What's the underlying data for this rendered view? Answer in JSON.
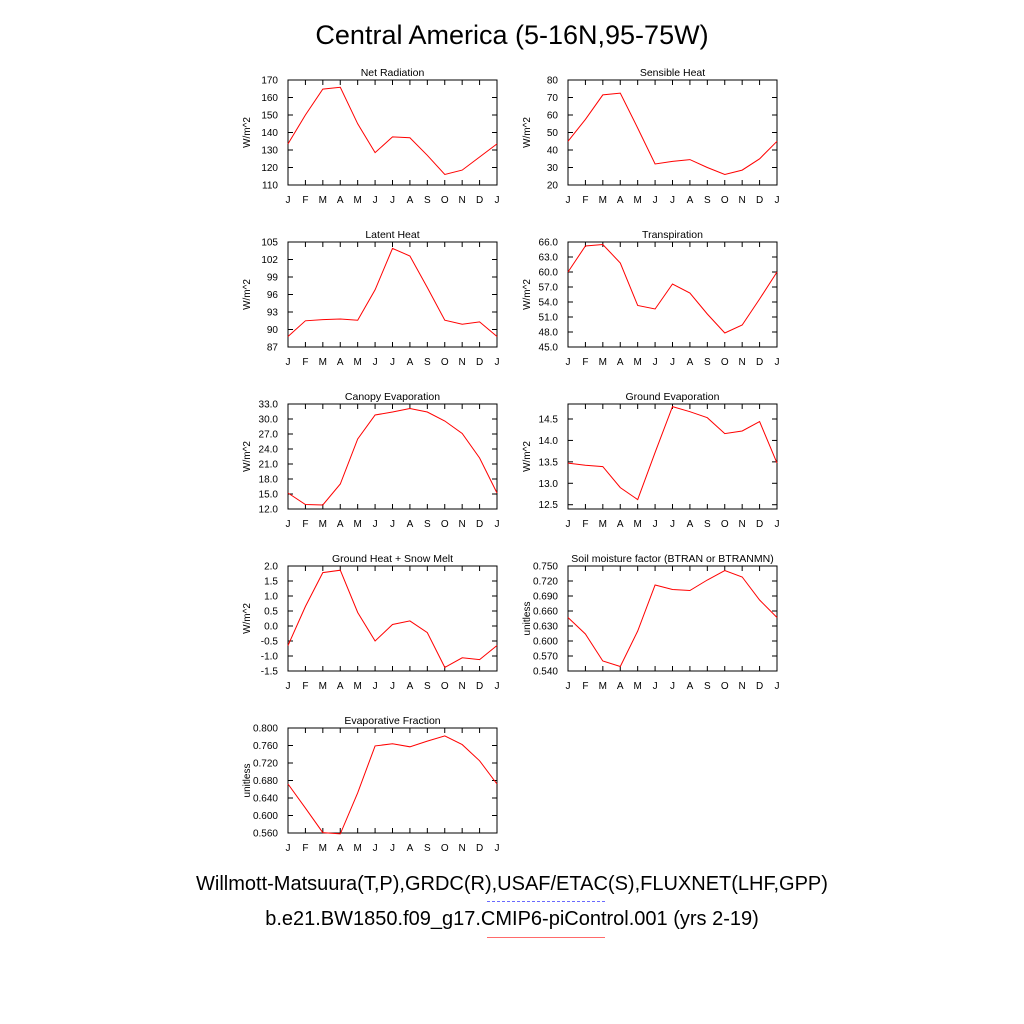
{
  "title": "Central America (5-16N,95-75W)",
  "legend": {
    "observations": "Willmott-Matsuura(T,P),GRDC(R),USAF/ETAC(S),FLUXNET(LHF,GPP)",
    "model": "b.e21.BW1850.f09_g17.CMIP6-piControl.001 (yrs 2-19)",
    "observations_color": "#4444ff",
    "model_color": "#ff0000"
  },
  "chart_data": [
    {
      "type": "line",
      "title": "Net Radiation",
      "xlabel": "",
      "ylabel": "W/m^2",
      "categories": [
        "J",
        "F",
        "M",
        "A",
        "M",
        "J",
        "J",
        "A",
        "S",
        "O",
        "N",
        "D",
        "J"
      ],
      "ylim": [
        110,
        170
      ],
      "yticks": [
        "110",
        "120",
        "130",
        "140",
        "150",
        "160",
        "170"
      ],
      "series": [
        {
          "name": "b.e21.BW1850.f09_g17.CMIP6-piControl.001 (yrs 2-19)",
          "color": "#ff0000",
          "values": [
            133.5,
            150,
            164.8,
            165.8,
            145,
            128.5,
            137.5,
            137,
            127,
            116,
            118.5,
            126,
            133.5
          ]
        }
      ]
    },
    {
      "type": "line",
      "title": "Sensible Heat",
      "xlabel": "",
      "ylabel": "W/m^2",
      "categories": [
        "J",
        "F",
        "M",
        "A",
        "M",
        "J",
        "J",
        "A",
        "S",
        "O",
        "N",
        "D",
        "J"
      ],
      "ylim": [
        20,
        80
      ],
      "yticks": [
        "20",
        "30",
        "40",
        "50",
        "60",
        "70",
        "80"
      ],
      "series": [
        {
          "name": "b.e21.BW1850.f09_g17.CMIP6-piControl.001 (yrs 2-19)",
          "color": "#ff0000",
          "values": [
            45,
            57.5,
            71.5,
            72.5,
            52.5,
            32,
            33.5,
            34.5,
            30,
            26,
            28.5,
            35,
            45
          ]
        }
      ]
    },
    {
      "type": "line",
      "title": "Latent Heat",
      "xlabel": "",
      "ylabel": "W/m^2",
      "categories": [
        "J",
        "F",
        "M",
        "A",
        "M",
        "J",
        "J",
        "A",
        "S",
        "O",
        "N",
        "D",
        "J"
      ],
      "ylim": [
        87,
        105
      ],
      "yticks": [
        "87",
        "90",
        "93",
        "96",
        "99",
        "102",
        "105"
      ],
      "series": [
        {
          "name": "b.e21.BW1850.f09_g17.CMIP6-piControl.001 (yrs 2-19)",
          "color": "#ff0000",
          "values": [
            88.8,
            91.5,
            91.7,
            91.8,
            91.6,
            96.8,
            103.9,
            102.6,
            97.2,
            91.6,
            90.9,
            91.3,
            88.8
          ]
        }
      ]
    },
    {
      "type": "line",
      "title": "Transpiration",
      "xlabel": "",
      "ylabel": "W/m^2",
      "categories": [
        "J",
        "F",
        "M",
        "A",
        "M",
        "J",
        "J",
        "A",
        "S",
        "O",
        "N",
        "D",
        "J"
      ],
      "ylim": [
        45,
        66
      ],
      "yticks": [
        "45.0",
        "48.0",
        "51.0",
        "54.0",
        "57.0",
        "60.0",
        "63.0",
        "66.0"
      ],
      "series": [
        {
          "name": "b.e21.BW1850.f09_g17.CMIP6-piControl.001 (yrs 2-19)",
          "color": "#ff0000",
          "values": [
            60,
            65.2,
            65.5,
            61.8,
            53.3,
            52.6,
            57.6,
            55.8,
            51.6,
            47.8,
            49.4,
            54.6,
            60
          ]
        }
      ]
    },
    {
      "type": "line",
      "title": "Canopy Evaporation",
      "xlabel": "",
      "ylabel": "W/m^2",
      "categories": [
        "J",
        "F",
        "M",
        "A",
        "M",
        "J",
        "J",
        "A",
        "S",
        "O",
        "N",
        "D",
        "J"
      ],
      "ylim": [
        12,
        33
      ],
      "yticks": [
        "12.0",
        "15.0",
        "18.0",
        "21.0",
        "24.0",
        "27.0",
        "30.0",
        "33.0"
      ],
      "series": [
        {
          "name": "b.e21.BW1850.f09_g17.CMIP6-piControl.001 (yrs 2-19)",
          "color": "#ff0000",
          "values": [
            15.2,
            12.9,
            12.8,
            17,
            26,
            30.8,
            31.4,
            32.1,
            31.4,
            29.6,
            27.1,
            22.2,
            15.2
          ]
        }
      ]
    },
    {
      "type": "line",
      "title": "Ground Evaporation",
      "xlabel": "",
      "ylabel": "W/m^2",
      "categories": [
        "J",
        "F",
        "M",
        "A",
        "M",
        "J",
        "J",
        "A",
        "S",
        "O",
        "N",
        "D",
        "J"
      ],
      "ylim": [
        12.4,
        14.85
      ],
      "yticks": [
        "12.5",
        "13.0",
        "13.5",
        "14.0",
        "14.5"
      ],
      "series": [
        {
          "name": "b.e21.BW1850.f09_g17.CMIP6-piControl.001 (yrs 2-19)",
          "color": "#ff0000",
          "values": [
            13.47,
            13.42,
            13.39,
            12.9,
            12.62,
            13.72,
            14.79,
            14.67,
            14.53,
            14.16,
            14.22,
            14.44,
            13.47
          ]
        }
      ]
    },
    {
      "type": "line",
      "title": "Ground Heat + Snow Melt",
      "xlabel": "",
      "ylabel": "W/m^2",
      "categories": [
        "J",
        "F",
        "M",
        "A",
        "M",
        "J",
        "J",
        "A",
        "S",
        "O",
        "N",
        "D",
        "J"
      ],
      "ylim": [
        -1.5,
        2.0
      ],
      "yticks": [
        "-1.5",
        "-1.0",
        "-0.5",
        "0.0",
        "0.5",
        "1.0",
        "1.5",
        "2.0"
      ],
      "series": [
        {
          "name": "b.e21.BW1850.f09_g17.CMIP6-piControl.001 (yrs 2-19)",
          "color": "#ff0000",
          "values": [
            -0.65,
            0.65,
            1.78,
            1.86,
            0.45,
            -0.5,
            0.05,
            0.17,
            -0.22,
            -1.38,
            -1.06,
            -1.12,
            -0.65
          ]
        }
      ]
    },
    {
      "type": "line",
      "title": "Soil moisture factor (BTRAN or BTRANMN)",
      "xlabel": "",
      "ylabel": "unitless",
      "categories": [
        "J",
        "F",
        "M",
        "A",
        "M",
        "J",
        "J",
        "A",
        "S",
        "O",
        "N",
        "D",
        "J"
      ],
      "ylim": [
        0.54,
        0.75
      ],
      "yticks": [
        "0.540",
        "0.570",
        "0.600",
        "0.630",
        "0.660",
        "0.690",
        "0.720",
        "0.750"
      ],
      "series": [
        {
          "name": "b.e21.BW1850.f09_g17.CMIP6-piControl.001 (yrs 2-19)",
          "color": "#ff0000",
          "values": [
            0.647,
            0.614,
            0.56,
            0.549,
            0.62,
            0.712,
            0.703,
            0.701,
            0.722,
            0.741,
            0.728,
            0.682,
            0.647
          ]
        }
      ]
    },
    {
      "type": "line",
      "title": "Evaporative Fraction",
      "xlabel": "",
      "ylabel": "unitless",
      "categories": [
        "J",
        "F",
        "M",
        "A",
        "M",
        "J",
        "J",
        "A",
        "S",
        "O",
        "N",
        "D",
        "J"
      ],
      "ylim": [
        0.56,
        0.8
      ],
      "yticks": [
        "0.560",
        "0.600",
        "0.640",
        "0.680",
        "0.720",
        "0.760",
        "0.800"
      ],
      "series": [
        {
          "name": "b.e21.BW1850.f09_g17.CMIP6-piControl.001 (yrs 2-19)",
          "color": "#ff0000",
          "values": [
            0.672,
            0.617,
            0.561,
            0.558,
            0.652,
            0.759,
            0.764,
            0.757,
            0.77,
            0.782,
            0.762,
            0.725,
            0.672
          ]
        }
      ]
    }
  ]
}
